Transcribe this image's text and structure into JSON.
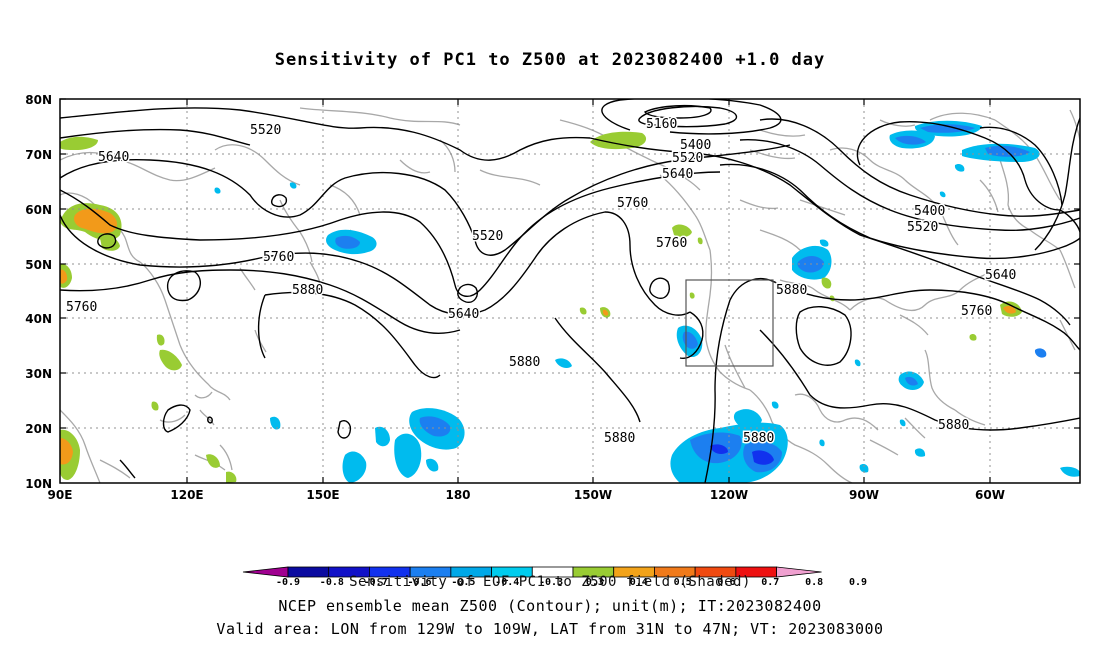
{
  "title": "Sensitivity of PC1 to Z500 at 2023082400 +1.0 day",
  "map": {
    "lat_labels": [
      "80N",
      "70N",
      "60N",
      "50N",
      "40N",
      "30N",
      "20N",
      "10N"
    ],
    "lon_labels": [
      "90E",
      "120E",
      "150E",
      "180",
      "150W",
      "120W",
      "90W",
      "60W"
    ],
    "contour_labels": [
      "5160",
      "5400",
      "5400",
      "5520",
      "5520",
      "5520",
      "5520",
      "5640",
      "5640",
      "5640",
      "5640",
      "5760",
      "5760",
      "5760",
      "5760",
      "5760",
      "5880",
      "5880",
      "5880",
      "5880",
      "5880",
      "5880"
    ],
    "colors": {
      "land": "#a8a8a8",
      "contour": "#000000",
      "grid": "#909090",
      "green": "#99cc33",
      "orange": "#f29a1a",
      "blue_light": "#00bbee",
      "blue_mid": "#1c7ff0",
      "blue_dark": "#1131ee"
    }
  },
  "colorbar": {
    "labels": [
      "-0.9",
      "-0.8",
      "-0.7",
      "-0.6",
      "-0.5",
      "-0.4",
      "-0.3",
      "0.3",
      "0.4",
      "0.5",
      "0.6",
      "0.7",
      "0.8",
      "0.9"
    ],
    "colors": [
      "#a00090",
      "#0a0aa0",
      "#1111c8",
      "#1131ee",
      "#1c7ff0",
      "#00a8e8",
      "#00ccee",
      "#ffffff",
      "#99cc33",
      "#f2a31a",
      "#f07a1a",
      "#f04a10",
      "#ee1111",
      "#f0a0d0"
    ]
  },
  "footer": {
    "line1": "Sensitivity of EOF PC1 to Z500 field (Shaded)",
    "line2": "NCEP ensemble mean Z500 (Contour); unit(m); IT:2023082400",
    "line3": "Valid area: LON from 129W to 109W, LAT from 31N to 47N; VT: 2023083000"
  }
}
